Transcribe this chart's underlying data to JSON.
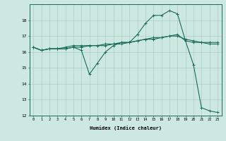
{
  "xlabel": "Humidex (Indice chaleur)",
  "background_color": "#cce8e0",
  "grid_color": "#aacfc8",
  "line_color": "#1a6b5a",
  "xlim": [
    -0.5,
    23.5
  ],
  "ylim": [
    12,
    19
  ],
  "xticks": [
    0,
    1,
    2,
    3,
    4,
    5,
    6,
    7,
    8,
    9,
    10,
    11,
    12,
    13,
    14,
    15,
    16,
    17,
    18,
    19,
    20,
    21,
    22,
    23
  ],
  "yticks": [
    12,
    13,
    14,
    15,
    16,
    17,
    18
  ],
  "line1_x": [
    0,
    1,
    2,
    3,
    4,
    5,
    6,
    7,
    8,
    9,
    10,
    11,
    12,
    13,
    14,
    15,
    16,
    17,
    18,
    19,
    20,
    21,
    22,
    23
  ],
  "line1_y": [
    16.3,
    16.1,
    16.2,
    16.2,
    16.2,
    16.3,
    16.1,
    14.6,
    15.3,
    16.0,
    16.4,
    16.6,
    16.6,
    17.1,
    17.8,
    18.3,
    18.3,
    18.6,
    18.4,
    16.7,
    15.2,
    12.5,
    12.3,
    12.2
  ],
  "line2_x": [
    0,
    1,
    2,
    3,
    4,
    5,
    6,
    7,
    8,
    9,
    10,
    11,
    12,
    13,
    14,
    15,
    16,
    17,
    18,
    19,
    20,
    21,
    22,
    23
  ],
  "line2_y": [
    16.3,
    16.1,
    16.2,
    16.2,
    16.3,
    16.4,
    16.4,
    16.4,
    16.4,
    16.5,
    16.5,
    16.6,
    16.6,
    16.7,
    16.8,
    16.9,
    16.9,
    17.0,
    17.1,
    16.7,
    16.6,
    16.6,
    16.6,
    16.6
  ],
  "line3_x": [
    0,
    1,
    2,
    3,
    4,
    5,
    6,
    7,
    8,
    9,
    10,
    11,
    12,
    13,
    14,
    15,
    16,
    17,
    18,
    19,
    20,
    21,
    22,
    23
  ],
  "line3_y": [
    16.3,
    16.1,
    16.2,
    16.2,
    16.2,
    16.3,
    16.3,
    16.4,
    16.4,
    16.4,
    16.5,
    16.5,
    16.6,
    16.7,
    16.8,
    16.8,
    16.9,
    17.0,
    17.0,
    16.8,
    16.7,
    16.6,
    16.5,
    16.5
  ]
}
